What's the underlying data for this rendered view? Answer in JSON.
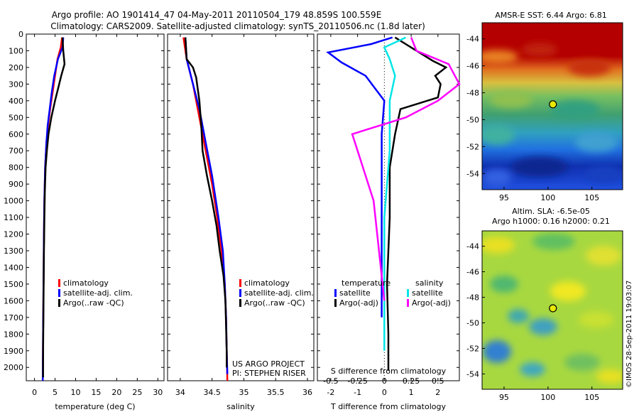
{
  "header": {
    "title_line1": "Argo profile: AO 1901414_47 04-May-2011 20110504_179 48.859S 100.559E",
    "title_line2": "Climatology: CARS2009. Satellite-adjusted climatology: synTS_20110506.nc (1.8d later)"
  },
  "credit": {
    "line1": "US ARGO PROJECT",
    "line2": "PI: STEPHEN RISER"
  },
  "side_stamp": "©IMOS 28-Sep-2011 19:03:07",
  "colors": {
    "climatology": "#ff0000",
    "satellite": "#0000ff",
    "argo": "#000000",
    "sat_salinity": "#00e5e5",
    "argo_salinity": "#ff00ff"
  },
  "chart_data": [
    {
      "type": "line",
      "panel": "temperature",
      "xlabel": "temperature (deg C)",
      "ylabel": "",
      "xlim": [
        -2,
        31.5
      ],
      "ylim": [
        2080,
        0
      ],
      "xticks": [
        0,
        5,
        10,
        15,
        20,
        25,
        30
      ],
      "yticks": [
        0,
        100,
        200,
        300,
        400,
        500,
        600,
        700,
        800,
        900,
        1000,
        1100,
        1200,
        1300,
        1400,
        1500,
        1600,
        1700,
        1800,
        1900,
        2000
      ],
      "legend": [
        "climatology",
        "satellite-adj. clim.",
        "Argo(..raw -QC)"
      ],
      "series": [
        {
          "name": "climatology",
          "color": "#ff0000",
          "points": [
            [
              6.7,
              20
            ],
            [
              6.4,
              80
            ],
            [
              5.6,
              150
            ],
            [
              5.0,
              250
            ],
            [
              4.4,
              350
            ],
            [
              3.8,
              450
            ],
            [
              3.3,
              550
            ],
            [
              2.9,
              650
            ],
            [
              2.6,
              800
            ],
            [
              2.4,
              1000
            ],
            [
              2.3,
              1200
            ],
            [
              2.2,
              1500
            ],
            [
              2.1,
              1800
            ],
            [
              2.0,
              2080
            ]
          ]
        },
        {
          "name": "satellite-adj. clim.",
          "color": "#0000ff",
          "points": [
            [
              7.0,
              20
            ],
            [
              6.8,
              80
            ],
            [
              5.7,
              150
            ],
            [
              4.8,
              250
            ],
            [
              4.2,
              350
            ],
            [
              3.7,
              450
            ],
            [
              3.2,
              550
            ],
            [
              2.9,
              650
            ],
            [
              2.6,
              800
            ],
            [
              2.4,
              1000
            ],
            [
              2.3,
              1200
            ],
            [
              2.2,
              1500
            ],
            [
              2.1,
              1800
            ],
            [
              2.0,
              2080
            ]
          ]
        },
        {
          "name": "Argo(..raw -QC)",
          "color": "#000000",
          "points": [
            [
              6.8,
              20
            ],
            [
              7.0,
              100
            ],
            [
              7.3,
              180
            ],
            [
              6.5,
              250
            ],
            [
              5.8,
              320
            ],
            [
              5.0,
              400
            ],
            [
              4.1,
              500
            ],
            [
              3.4,
              600
            ],
            [
              3.0,
              700
            ],
            [
              2.7,
              800
            ],
            [
              2.5,
              950
            ],
            [
              2.4,
              1100
            ],
            [
              2.3,
              1300
            ],
            [
              2.2,
              1600
            ],
            [
              2.1,
              1900
            ],
            [
              2.1,
              2060
            ]
          ]
        }
      ]
    },
    {
      "type": "line",
      "panel": "salinity",
      "xlabel": "salinity",
      "xlim": [
        33.8,
        36.1
      ],
      "ylim": [
        2080,
        0
      ],
      "xticks": [
        34,
        34.5,
        35,
        35.5,
        36
      ],
      "xticklabels": [
        "34",
        "34.5",
        "35",
        "35.5",
        "36"
      ],
      "legend": [
        "climatology",
        "satellite-adj. clim.",
        "Argo(..raw -QC)"
      ],
      "series": [
        {
          "name": "climatology",
          "color": "#ff0000",
          "points": [
            [
              34.05,
              20
            ],
            [
              34.1,
              150
            ],
            [
              34.2,
              300
            ],
            [
              34.3,
              500
            ],
            [
              34.4,
              700
            ],
            [
              34.5,
              900
            ],
            [
              34.58,
              1100
            ],
            [
              34.65,
              1300
            ],
            [
              34.7,
              1500
            ],
            [
              34.72,
              1700
            ],
            [
              34.73,
              1900
            ],
            [
              34.74,
              2080
            ]
          ]
        },
        {
          "name": "satellite-adj. clim.",
          "color": "#0000ff",
          "points": [
            [
              34.08,
              20
            ],
            [
              34.1,
              150
            ],
            [
              34.2,
              300
            ],
            [
              34.3,
              450
            ],
            [
              34.4,
              650
            ],
            [
              34.5,
              850
            ],
            [
              34.6,
              1100
            ],
            [
              34.67,
              1300
            ],
            [
              34.7,
              1500
            ],
            [
              34.72,
              1700
            ],
            [
              34.73,
              1900
            ],
            [
              34.74,
              2040
            ]
          ]
        },
        {
          "name": "Argo(..raw -QC)",
          "color": "#000000",
          "points": [
            [
              34.08,
              20
            ],
            [
              34.1,
              150
            ],
            [
              34.2,
              200
            ],
            [
              34.25,
              260
            ],
            [
              34.3,
              400
            ],
            [
              34.33,
              550
            ],
            [
              34.35,
              700
            ],
            [
              34.42,
              850
            ],
            [
              34.5,
              1000
            ],
            [
              34.57,
              1150
            ],
            [
              34.62,
              1300
            ],
            [
              34.68,
              1450
            ],
            [
              34.71,
              1600
            ],
            [
              34.72,
              1750
            ],
            [
              34.73,
              1900
            ],
            [
              34.73,
              2000
            ]
          ]
        }
      ]
    },
    {
      "type": "line",
      "panel": "difference",
      "xlabel": "T difference from climatology",
      "xlabel_top": "S difference from climatology",
      "xlim": [
        -2.5,
        2.8
      ],
      "ylim": [
        2080,
        0
      ],
      "xticks": [
        -2,
        -1,
        0,
        1,
        2
      ],
      "top_ticks": [
        -0.5,
        -0.25,
        0,
        0.25,
        0.5
      ],
      "top_tick_labels": [
        "-0.5",
        "-0.25",
        "0",
        "0.25",
        "0.5"
      ],
      "legend_headers": [
        "temperature",
        "salinity"
      ],
      "legend": [
        "satellite",
        "Argo(-adj)",
        "satellite",
        "Argo(-adj)"
      ],
      "series": [
        {
          "name": "T satellite",
          "color": "#0000ff",
          "points": [
            [
              0.3,
              20
            ],
            [
              -0.5,
              60
            ],
            [
              -2.1,
              110
            ],
            [
              -1.6,
              170
            ],
            [
              -0.7,
              250
            ],
            [
              0,
              400
            ],
            [
              -0.1,
              600
            ],
            [
              -0.1,
              800
            ],
            [
              -0.1,
              1100
            ],
            [
              -0.1,
              1500
            ],
            [
              -0.1,
              1700
            ]
          ]
        },
        {
          "name": "T Argo(-adj)",
          "color": "#000000",
          "points": [
            [
              0.4,
              20
            ],
            [
              1.0,
              80
            ],
            [
              1.8,
              160
            ],
            [
              2.3,
              200
            ],
            [
              1.9,
              250
            ],
            [
              2.1,
              300
            ],
            [
              2.0,
              380
            ],
            [
              0.6,
              450
            ],
            [
              0.4,
              600
            ],
            [
              0.2,
              800
            ],
            [
              0.2,
              1100
            ],
            [
              0.1,
              1500
            ],
            [
              0.15,
              1800
            ],
            [
              0.15,
              2020
            ]
          ]
        },
        {
          "name": "S satellite",
          "color": "#00e5e5",
          "points": [
            [
              0.2,
              20
            ],
            [
              0.0,
              80
            ],
            [
              0.05,
              150
            ],
            [
              0.1,
              250
            ],
            [
              0.05,
              400
            ],
            [
              0.05,
              700
            ],
            [
              0.0,
              1100
            ],
            [
              0.0,
              1500
            ],
            [
              0.0,
              1900
            ]
          ]
        },
        {
          "name": "S Argo(-adj)",
          "color": "#ff00ff",
          "points": [
            [
              0.25,
              20
            ],
            [
              0.3,
              100
            ],
            [
              0.6,
              180
            ],
            [
              0.7,
              300
            ],
            [
              0.5,
              400
            ],
            [
              0.2,
              500
            ],
            [
              -0.3,
              600
            ],
            [
              -0.2,
              800
            ],
            [
              -0.1,
              1000
            ],
            [
              -0.05,
              1300
            ],
            [
              0.0,
              1600
            ]
          ]
        }
      ]
    },
    {
      "type": "heatmap",
      "panel": "sst-map",
      "title": "AMSR-E SST: 6.44 Argo: 6.81",
      "xlim": [
        92.5,
        108.5
      ],
      "ylim": [
        -55.2,
        -42.8
      ],
      "xticks": [
        95,
        100,
        105
      ],
      "xticklabels": [
        "95",
        "100",
        "105"
      ],
      "yticks": [
        -44,
        -46,
        -48,
        -50,
        -52,
        -54
      ],
      "yticklabels": [
        "-44",
        "-46",
        "-48",
        "-50",
        "-52",
        "-54"
      ],
      "argo_position": [
        100.559,
        -48.859
      ]
    },
    {
      "type": "heatmap",
      "panel": "sla-map",
      "title_line1": "Altim. SLA: -6.5e-05",
      "title_line2": "Argo h1000: 0.16 h2000: 0.21",
      "xlim": [
        92.5,
        108.5
      ],
      "ylim": [
        -55.2,
        -42.8
      ],
      "xticks": [
        95,
        100,
        105
      ],
      "xticklabels": [
        "95",
        "100",
        "105"
      ],
      "yticks": [
        -44,
        -46,
        -48,
        -50,
        -52,
        -54
      ],
      "yticklabels": [
        "-44",
        "-46",
        "-48",
        "-50",
        "-52",
        "-54"
      ],
      "argo_position": [
        100.559,
        -48.859
      ]
    }
  ]
}
